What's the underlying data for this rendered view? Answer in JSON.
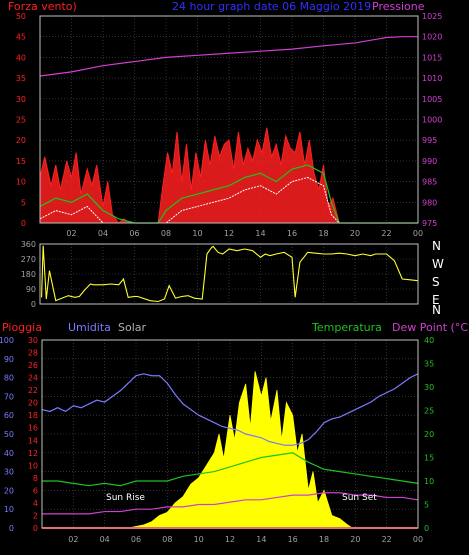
{
  "colors": {
    "wind": "#ff2020",
    "wind_avg": "#20c020",
    "wind_gust_low": "#ffffff",
    "pressure": "#d040d0",
    "title": "#3030ff",
    "direction": "#ffff30",
    "rain": "#ff2020",
    "humidity": "#7a7aff",
    "solar": "#ffff00",
    "temperature": "#20c020",
    "dewpoint": "#d040d0",
    "grid": "#505050",
    "axis_frame": "#c0c0c0",
    "tick_text": "#a0a0a0",
    "label_solar": "#b0b0b0",
    "label_temp": "#20c020",
    "label_dew": "#d040d0"
  },
  "panel1": {
    "label_left": "Forza vento)",
    "title": "24 hour graph date  06 Maggio 2019",
    "label_right": "Pressione"
  },
  "panel2": {
    "compass": [
      "N",
      "W",
      "S",
      "E",
      "N"
    ]
  },
  "panel3": {
    "label_rain": "Pioggia",
    "label_humidity": "Umidita",
    "label_solar": "Solar",
    "label_temp": "Temperatura",
    "label_dew": "Dew Point (°C)",
    "sunrise": "Sun Rise",
    "sunset": "Sun Set"
  },
  "chart_data": [
    {
      "type": "area",
      "x_ticks": [
        "02",
        "04",
        "06",
        "08",
        "10",
        "12",
        "14",
        "16",
        "18",
        "20",
        "22",
        "00"
      ],
      "y_left_ticks": [
        0,
        5,
        10,
        15,
        20,
        25,
        30,
        35,
        40,
        45,
        50
      ],
      "y_right_ticks": [
        975,
        980,
        985,
        990,
        995,
        1000,
        1005,
        1010,
        1015,
        1020,
        1025
      ],
      "ylim_left": [
        0,
        50
      ],
      "ylim_right": [
        975,
        1025
      ],
      "xlim_hours": [
        0,
        24
      ],
      "series": [
        {
          "name": "Forza vento",
          "axis": "left",
          "x": [
            0,
            0.3,
            0.7,
            1.0,
            1.3,
            1.7,
            2.0,
            2.3,
            2.6,
            3.0,
            3.3,
            3.6,
            4.0,
            4.3,
            4.6,
            5.0,
            5.3,
            5.7,
            6.0,
            7.5,
            7.8,
            8.1,
            8.4,
            8.7,
            9.0,
            9.3,
            9.6,
            9.9,
            10.2,
            10.5,
            10.8,
            11.1,
            11.4,
            11.7,
            12.0,
            12.3,
            12.6,
            12.9,
            13.2,
            13.5,
            13.8,
            14.1,
            14.4,
            14.7,
            15.0,
            15.3,
            15.6,
            15.9,
            16.2,
            16.5,
            16.8,
            17.1,
            17.4,
            17.7,
            18.0,
            18.3,
            18.6,
            19.0,
            24.0
          ],
          "values": [
            11,
            16,
            9,
            14,
            8,
            15,
            11,
            17,
            7,
            13,
            9,
            14,
            4,
            10,
            2,
            0,
            1,
            0,
            0,
            0,
            9,
            17,
            12,
            22,
            10,
            19,
            8,
            17,
            11,
            20,
            14,
            21,
            16,
            19,
            20,
            13,
            22,
            14,
            18,
            15,
            20,
            17,
            23,
            16,
            19,
            14,
            21,
            18,
            17,
            22,
            14,
            20,
            12,
            8,
            14,
            4,
            6,
            0,
            0
          ]
        },
        {
          "name": "Wind avg",
          "axis": "left",
          "x": [
            0,
            1,
            2,
            3,
            4,
            5,
            6,
            7.5,
            8,
            9,
            10,
            11,
            12,
            13,
            14,
            15,
            16,
            17,
            18,
            18.5,
            19,
            24
          ],
          "values": [
            4,
            6,
            5,
            7,
            3,
            1,
            0,
            0,
            3,
            6,
            7,
            8,
            9,
            11,
            12,
            10,
            13,
            14,
            12,
            5,
            0,
            0
          ]
        },
        {
          "name": "Pressione",
          "axis": "right",
          "x": [
            0,
            2,
            4,
            6,
            8,
            10,
            12,
            14,
            16,
            18,
            20,
            22,
            23,
            24
          ],
          "values": [
            1010.5,
            1011.5,
            1013,
            1014,
            1015,
            1015.5,
            1016,
            1016.5,
            1017,
            1017.8,
            1018.5,
            1019.8,
            1020,
            1020
          ]
        }
      ]
    },
    {
      "type": "line",
      "x_ticks": [],
      "y_ticks": [
        0,
        90,
        180,
        270,
        360
      ],
      "ylim": [
        0,
        360
      ],
      "xlim_hours": [
        0,
        24
      ],
      "series": [
        {
          "name": "Direzione vento",
          "x": [
            0.1,
            0.2,
            0.4,
            0.6,
            1.0,
            1.8,
            2.2,
            2.5,
            2.8,
            3.2,
            3.4,
            4.0,
            4.5,
            5.0,
            5.3,
            5.6,
            6.0,
            6.2,
            7.0,
            7.5,
            7.9,
            8.2,
            8.6,
            9.0,
            9.4,
            9.8,
            10.3,
            10.6,
            10.9,
            11.0,
            11.3,
            11.6,
            12.0,
            12.5,
            13.0,
            13.5,
            14.0,
            14.3,
            14.6,
            15.0,
            15.5,
            16.0,
            16.2,
            16.5,
            17.0,
            17.5,
            18.0,
            18.5,
            19.0,
            19.5,
            20.0,
            20.5,
            21.0,
            21.3,
            21.6,
            22.0,
            22.5,
            23.0,
            23.5,
            24.0
          ],
          "values": [
            40,
            350,
            30,
            200,
            20,
            50,
            40,
            45,
            80,
            120,
            115,
            115,
            120,
            115,
            150,
            40,
            45,
            45,
            20,
            15,
            30,
            110,
            35,
            45,
            50,
            35,
            30,
            300,
            340,
            345,
            310,
            300,
            330,
            320,
            330,
            320,
            280,
            300,
            290,
            300,
            310,
            280,
            40,
            250,
            310,
            305,
            300,
            300,
            305,
            300,
            290,
            300,
            290,
            300,
            300,
            300,
            260,
            150,
            145,
            140
          ]
        }
      ]
    },
    {
      "type": "area",
      "x_ticks": [
        "02",
        "04",
        "06",
        "08",
        "10",
        "12",
        "14",
        "16",
        "18",
        "20",
        "22",
        "00"
      ],
      "y_rain_ticks": [
        0,
        2,
        4,
        6,
        8,
        10,
        12,
        14,
        16,
        18,
        20,
        22,
        24,
        26,
        28,
        30
      ],
      "y_humidity_ticks": [
        0,
        10,
        20,
        30,
        40,
        50,
        60,
        70,
        80,
        90,
        100
      ],
      "y_temp_ticks": [
        0,
        5,
        10,
        15,
        20,
        25,
        30,
        35,
        40
      ],
      "ylim_rain": [
        0,
        30
      ],
      "ylim_humidity": [
        0,
        100
      ],
      "ylim_temp": [
        0,
        40
      ],
      "xlim_hours": [
        0,
        24
      ],
      "series": [
        {
          "name": "Umidita",
          "axis": "humidity",
          "x": [
            0,
            0.5,
            1.0,
            1.5,
            2.0,
            2.5,
            3.0,
            3.5,
            4.0,
            4.5,
            5.0,
            5.5,
            6.0,
            6.5,
            7.0,
            7.5,
            8.0,
            8.5,
            9.0,
            9.5,
            10.0,
            10.5,
            11.0,
            11.5,
            12.0,
            12.5,
            13.0,
            13.5,
            14.0,
            14.5,
            15.0,
            15.5,
            16.0,
            16.5,
            17.0,
            17.5,
            18.0,
            18.5,
            19.0,
            19.5,
            20.0,
            20.5,
            21.0,
            21.5,
            22.0,
            22.5,
            23.0,
            23.5,
            24.0
          ],
          "values": [
            63,
            62,
            64,
            62,
            65,
            64,
            66,
            68,
            67,
            70,
            73,
            77,
            81,
            82,
            81,
            81,
            77,
            71,
            66,
            63,
            60,
            58,
            56,
            54,
            53,
            52,
            50,
            49,
            48,
            46,
            45,
            44,
            44,
            45,
            47,
            51,
            56,
            58,
            59,
            61,
            63,
            65,
            67,
            70,
            72,
            74,
            77,
            80,
            82
          ]
        },
        {
          "name": "Solar",
          "axis": "rain",
          "x": [
            5.5,
            6.5,
            7.0,
            7.5,
            8.0,
            8.5,
            9.0,
            9.5,
            10.0,
            10.5,
            11.0,
            11.3,
            11.6,
            12.0,
            12.3,
            12.6,
            13.0,
            13.3,
            13.6,
            14.0,
            14.3,
            14.6,
            15.0,
            15.3,
            15.6,
            16.0,
            16.3,
            16.6,
            17.0,
            17.3,
            17.6,
            18.0,
            18.5,
            19.0,
            19.5,
            19.8
          ],
          "values": [
            0,
            0.5,
            1,
            2,
            2.5,
            4,
            5,
            7,
            8,
            10,
            12,
            15,
            11,
            18,
            14,
            20,
            23,
            16,
            25,
            21,
            24,
            17,
            22,
            14,
            20,
            18,
            12,
            15,
            6,
            9,
            4,
            6,
            2,
            1.5,
            0.5,
            0
          ]
        },
        {
          "name": "Temperatura",
          "axis": "temp",
          "x": [
            0,
            1,
            2,
            3,
            4,
            5,
            6,
            7,
            8,
            9,
            10,
            11,
            12,
            13,
            14,
            15,
            16,
            17,
            18,
            19,
            20,
            21,
            22,
            23,
            24
          ],
          "values": [
            10,
            10,
            9.5,
            9,
            9.5,
            9,
            10,
            10,
            10,
            11,
            11.5,
            12,
            13,
            14,
            15,
            15.5,
            16,
            14,
            12.5,
            12,
            11.5,
            11,
            10.5,
            10,
            9.5
          ]
        },
        {
          "name": "Dew Point",
          "axis": "temp",
          "x": [
            0,
            1,
            2,
            3,
            4,
            5,
            6,
            7,
            8,
            9,
            10,
            11,
            12,
            13,
            14,
            15,
            16,
            17,
            18,
            19,
            20,
            21,
            22,
            23,
            24
          ],
          "values": [
            3,
            3,
            3,
            3,
            3.5,
            3.5,
            4,
            4,
            4.5,
            4.5,
            5,
            5,
            5.5,
            6,
            6,
            6.5,
            7,
            7,
            7.5,
            7.5,
            7,
            7,
            6.5,
            6.5,
            6
          ]
        },
        {
          "name": "Pioggia",
          "axis": "rain",
          "x": [
            0,
            24
          ],
          "values": [
            0,
            0
          ]
        }
      ]
    }
  ]
}
